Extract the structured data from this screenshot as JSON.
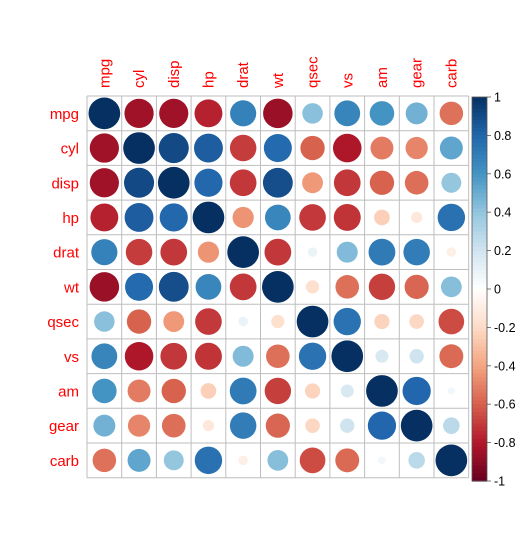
{
  "chart_data": {
    "type": "heatmap",
    "variables": [
      "mpg",
      "cyl",
      "disp",
      "hp",
      "drat",
      "wt",
      "qsec",
      "vs",
      "am",
      "gear",
      "carb"
    ],
    "matrix": [
      [
        1.0,
        -0.852,
        -0.848,
        -0.776,
        0.681,
        -0.868,
        0.419,
        0.664,
        0.6,
        0.48,
        -0.551
      ],
      [
        -0.852,
        1.0,
        0.902,
        0.832,
        -0.7,
        0.782,
        -0.591,
        -0.811,
        -0.523,
        -0.493,
        0.527
      ],
      [
        -0.848,
        0.902,
        1.0,
        0.791,
        -0.71,
        0.888,
        -0.434,
        -0.71,
        -0.591,
        -0.556,
        0.395
      ],
      [
        -0.776,
        0.832,
        0.791,
        1.0,
        -0.449,
        0.659,
        -0.708,
        -0.723,
        -0.243,
        -0.126,
        0.75
      ],
      [
        0.681,
        -0.7,
        -0.71,
        -0.449,
        1.0,
        -0.712,
        0.091,
        0.44,
        0.713,
        0.7,
        -0.091
      ],
      [
        -0.868,
        0.782,
        0.888,
        0.659,
        -0.712,
        1.0,
        -0.175,
        -0.555,
        -0.692,
        -0.583,
        0.428
      ],
      [
        0.419,
        -0.591,
        -0.434,
        -0.708,
        0.091,
        -0.175,
        1.0,
        0.745,
        -0.23,
        -0.213,
        -0.656
      ],
      [
        0.664,
        -0.811,
        -0.71,
        -0.723,
        0.44,
        -0.555,
        0.745,
        1.0,
        0.168,
        0.206,
        -0.57
      ],
      [
        0.6,
        -0.523,
        -0.591,
        -0.243,
        0.713,
        -0.692,
        -0.23,
        0.168,
        1.0,
        0.794,
        0.058
      ],
      [
        0.48,
        -0.493,
        -0.556,
        -0.126,
        0.7,
        -0.583,
        -0.213,
        0.206,
        0.794,
        1.0,
        0.274
      ],
      [
        -0.551,
        0.527,
        0.395,
        0.75,
        -0.091,
        0.428,
        -0.656,
        -0.57,
        0.058,
        0.274,
        1.0
      ]
    ],
    "colorbar": {
      "range": [
        -1,
        1
      ],
      "ticks": [
        "1",
        "0.8",
        "0.6",
        "0.4",
        "0.2",
        "0",
        "-0.2",
        "-0.4",
        "-0.6",
        "-0.8",
        "-1"
      ]
    },
    "color_stops": [
      "#67001F",
      "#B2182B",
      "#D6604D",
      "#F4A582",
      "#FDDBC7",
      "#FFFFFF",
      "#D1E5F0",
      "#92C5DE",
      "#4393C3",
      "#2166AC",
      "#053061"
    ],
    "label_color": "#ff0000",
    "grid_color": "#bebebe"
  }
}
